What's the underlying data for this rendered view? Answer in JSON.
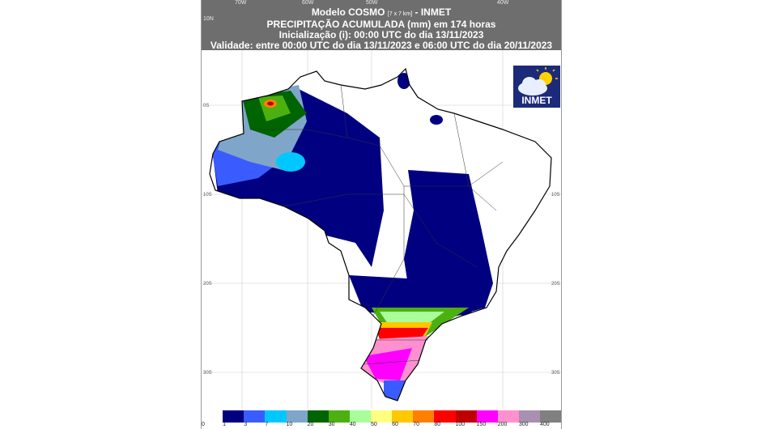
{
  "header": {
    "line1_a": "Modelo COSMO",
    "line1_small": "[7 x 7 km]",
    "line1_b": "- INMET",
    "title": "PRECIPITAÇÃO ACUMULADA (mm) em 174 horas",
    "init": "Inicialização (i): 00:00 UTC do dia 13/11/2023",
    "validity": "Validade: entre 00:00 UTC do dia 13/11/2023 e 06:00 UTC do dia 20/11/2023"
  },
  "axes": {
    "lon_labels": [
      "70W",
      "60W",
      "50W",
      "40W"
    ],
    "lat_labels": [
      "10N",
      "0S",
      "10S",
      "20S",
      "30S"
    ]
  },
  "logo": {
    "text": "INMET",
    "icon": "cloud-sun-icon"
  },
  "legend": {
    "colors": [
      "#ffffff",
      "#000080",
      "#3a5cff",
      "#00c8ff",
      "#7fa6c8",
      "#006400",
      "#4cb010",
      "#a8ff9a",
      "#ffff80",
      "#ffc800",
      "#ff8000",
      "#ff0000",
      "#c00000",
      "#ff00ff",
      "#ff90d0",
      "#a890b0",
      "#808080"
    ],
    "labels": [
      "0",
      "1",
      "3",
      "7",
      "10",
      "20",
      "30",
      "40",
      "50",
      "60",
      "70",
      "80",
      "100",
      "150",
      "200",
      "300",
      "400"
    ]
  }
}
